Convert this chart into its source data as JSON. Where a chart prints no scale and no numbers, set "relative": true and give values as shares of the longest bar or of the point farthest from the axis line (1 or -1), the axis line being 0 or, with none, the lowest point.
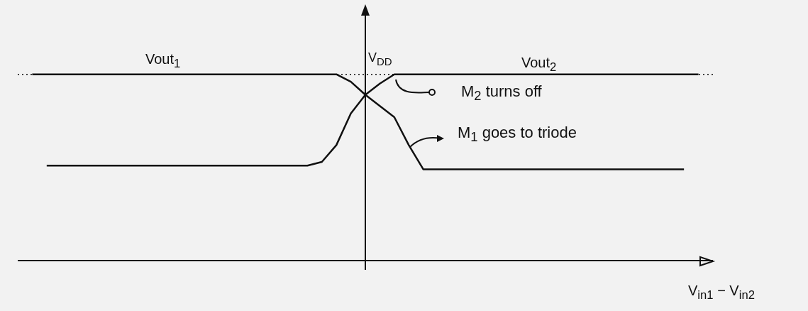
{
  "chart_data": {
    "type": "line",
    "relative": true,
    "xlabel": "V$_{in1}$ − V$_{in2}$",
    "categories": [
      null,
      null,
      null,
      null,
      null,
      null,
      null,
      null,
      null,
      null,
      null,
      null,
      null,
      null,
      null,
      null,
      null,
      null,
      null,
      null,
      null,
      null,
      null,
      null,
      null,
      null,
      null,
      null,
      null,
      null,
      null,
      null,
      null,
      null,
      null,
      null,
      null,
      null,
      null,
      null,
      null,
      null,
      null,
      null,
      null,
      null,
      null,
      null,
      null
    ],
    "series": [
      {
        "name": "Vout$_{1}$",
        "color": "#111111",
        "values": [
          null,
          1,
          1,
          1,
          1,
          1,
          1,
          1,
          1,
          1,
          1,
          1,
          1,
          1,
          1,
          1,
          1,
          1,
          1,
          1,
          1,
          1,
          1,
          0.96,
          0.89,
          0.83,
          0.77,
          0.62,
          0.49,
          0.49,
          0.49,
          0.49,
          0.49,
          0.49,
          0.49,
          0.49,
          0.49,
          0.49,
          0.49,
          0.49,
          0.49,
          0.49,
          0.49,
          0.49,
          0.49,
          0.49,
          0.49,
          null,
          null
        ]
      },
      {
        "name": "Vout$_{2}$",
        "color": "#111111",
        "values": [
          null,
          null,
          0.51,
          0.51,
          0.51,
          0.51,
          0.51,
          0.51,
          0.51,
          0.51,
          0.51,
          0.51,
          0.51,
          0.51,
          0.51,
          0.51,
          0.51,
          0.51,
          0.51,
          0.51,
          0.51,
          0.53,
          0.62,
          0.79,
          0.89,
          0.95,
          1,
          1,
          1,
          1,
          1,
          1,
          1,
          1,
          1,
          1,
          1,
          1,
          1,
          1,
          1,
          1,
          1,
          1,
          1,
          1,
          1,
          1,
          null
        ]
      }
    ],
    "ref_lines": [
      {
        "axis": "y",
        "value": 1,
        "label": "V$_{DD}$",
        "line_style": "dotted",
        "color": "#111111"
      }
    ],
    "annotations": [
      "M$_{2}$ turns off",
      "M$_{1}$ goes to triode"
    ],
    "marker": "none",
    "line_style": "solid"
  }
}
